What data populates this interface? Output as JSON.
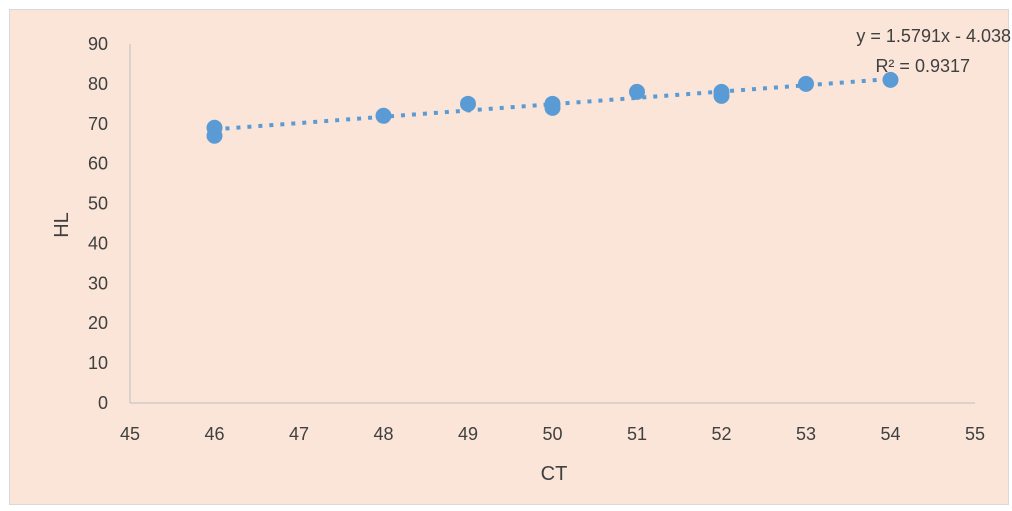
{
  "colors": {
    "background": "#fae5d8",
    "marker": "#5b9bd5",
    "trendline": "#5b9bd5",
    "axis": "#bfbfbf"
  },
  "chart_data": {
    "type": "scatter",
    "title": "",
    "xlabel": "CT",
    "ylabel": "HL",
    "xlim": [
      45,
      55
    ],
    "ylim": [
      0,
      90
    ],
    "x_ticks": [
      "45",
      "46",
      "47",
      "48",
      "49",
      "50",
      "51",
      "52",
      "53",
      "54",
      "55"
    ],
    "y_ticks": [
      "0",
      "10",
      "20",
      "30",
      "40",
      "50",
      "60",
      "70",
      "80",
      "90"
    ],
    "grid": false,
    "legend": "none",
    "series": [
      {
        "x": [
          46,
          46,
          48,
          49,
          50,
          50,
          51,
          52,
          52,
          53,
          54
        ],
        "y": [
          67,
          69,
          72,
          75,
          74,
          75,
          78,
          77,
          78,
          80,
          81
        ]
      }
    ],
    "trendline": {
      "type": "linear",
      "slope": 1.5791,
      "intercept": -4.038,
      "x_range": [
        46,
        54
      ],
      "style": "dotted",
      "equation_label": "y = 1.5791x - 4.038",
      "r2_label": "R² = 0.9317"
    }
  }
}
